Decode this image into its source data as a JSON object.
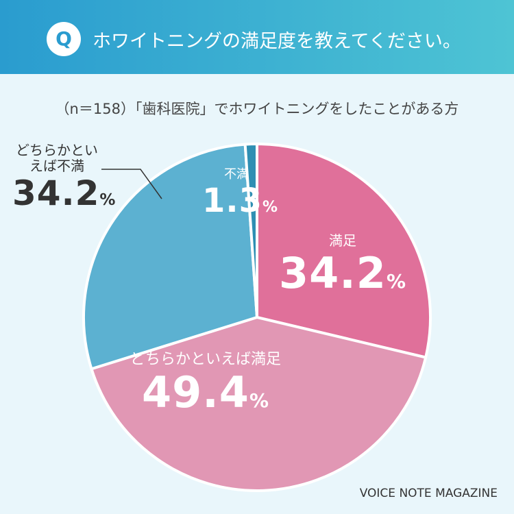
{
  "chart_data": {
    "type": "pie",
    "title": "ホワイトニングの満足度を教えてください。",
    "title_badge": "Q",
    "subtitle": "（n＝158）「歯科医院」でホワイトニングをしたことがある方",
    "categories": [
      "満足",
      "どちらかといえば満足",
      "どちらかといえば不満",
      "不満"
    ],
    "values": [
      34.2,
      49.4,
      34.2,
      1.3
    ],
    "value_labels": [
      "34.2%",
      "49.4%",
      "34.2%",
      "1.3%"
    ],
    "colors": [
      "#e0709a",
      "#e197b4",
      "#5cb1d1",
      "#2f8fb3"
    ],
    "source": "VOICE NOTE MAGAZINE"
  }
}
